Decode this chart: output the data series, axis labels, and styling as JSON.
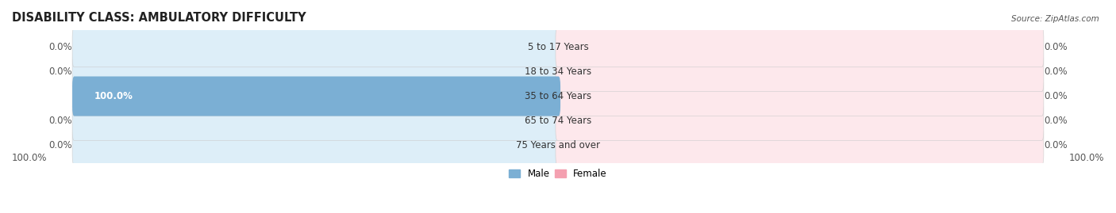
{
  "title": "DISABILITY CLASS: AMBULATORY DIFFICULTY",
  "source": "Source: ZipAtlas.com",
  "categories": [
    "5 to 17 Years",
    "18 to 34 Years",
    "35 to 64 Years",
    "65 to 74 Years",
    "75 Years and over"
  ],
  "male_values": [
    0.0,
    0.0,
    100.0,
    0.0,
    0.0
  ],
  "female_values": [
    0.0,
    0.0,
    0.0,
    0.0,
    0.0
  ],
  "male_color": "#7BAFD4",
  "female_color": "#F4A0B0",
  "male_bg_color": "#DDEEF8",
  "female_bg_color": "#FDE8EC",
  "title_fontsize": 10.5,
  "label_fontsize": 8.5,
  "tick_fontsize": 8.5,
  "max_val": 100.0,
  "bar_height": 0.62,
  "figsize": [
    14.06,
    2.69
  ],
  "dpi": 100,
  "bottom_left_label": "100.0%",
  "bottom_right_label": "100.0%"
}
